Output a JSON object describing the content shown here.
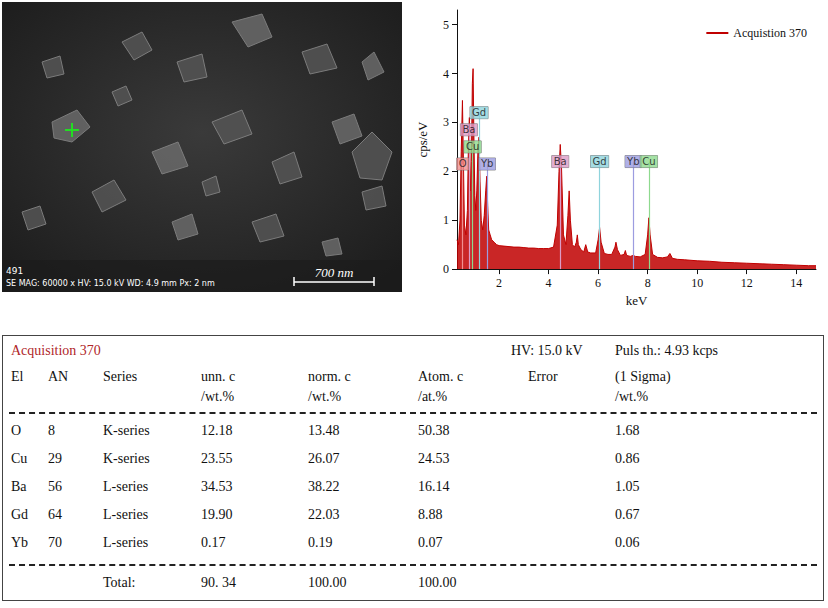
{
  "image": {
    "label": "491",
    "info": "SE MAG: 60000 x HV: 15.0 kV WD: 4.9 mm Px: 2 nm",
    "scale_bar": "700 nm"
  },
  "chart_data": {
    "type": "line",
    "xlabel": "keV",
    "ylabel": "cps/eV",
    "xlim": [
      0.3,
      14.8
    ],
    "xticks": [
      2,
      4,
      6,
      8,
      10,
      12,
      14
    ],
    "ylim": [
      0,
      5.3
    ],
    "yticks": [
      0,
      1,
      2,
      3,
      4,
      5
    ],
    "grid": false,
    "legend": "upper right",
    "x": [
      0.3,
      0.36,
      0.42,
      0.47,
      0.52,
      0.56,
      0.6,
      0.66,
      0.72,
      0.76,
      0.8,
      0.84,
      0.88,
      0.92,
      0.95,
      0.98,
      1.02,
      1.06,
      1.1,
      1.15,
      1.19,
      1.23,
      1.28,
      1.34,
      1.4,
      1.46,
      1.5,
      1.54,
      1.58,
      1.64,
      1.7,
      1.8,
      1.9,
      2.0,
      2.2,
      2.4,
      2.6,
      2.8,
      3.0,
      3.2,
      3.4,
      3.6,
      3.8,
      4.0,
      4.2,
      4.35,
      4.42,
      4.47,
      4.52,
      4.6,
      4.7,
      4.78,
      4.83,
      4.88,
      4.96,
      5.05,
      5.12,
      5.16,
      5.2,
      5.3,
      5.42,
      5.5,
      5.58,
      5.7,
      5.9,
      6.0,
      6.06,
      6.12,
      6.25,
      6.4,
      6.55,
      6.68,
      6.72,
      6.78,
      6.9,
      7.05,
      7.1,
      7.15,
      7.3,
      7.42,
      7.5,
      7.7,
      7.9,
      8.0,
      8.05,
      8.1,
      8.2,
      8.4,
      8.6,
      8.8,
      8.9,
      9.0,
      9.2,
      9.5,
      10.0,
      10.5,
      11.0,
      11.5,
      12.0,
      12.5,
      13.0,
      13.5,
      14.0,
      14.5,
      14.8
    ],
    "series": [
      {
        "name": "Acquistion 370",
        "color": "#c00000",
        "values": [
          0.6,
          0.5,
          1.0,
          2.4,
          3.45,
          2.2,
          0.9,
          0.7,
          1.2,
          2.5,
          3.1,
          1.6,
          2.2,
          3.8,
          4.1,
          2.8,
          1.5,
          1.2,
          1.6,
          2.5,
          2.7,
          1.8,
          1.0,
          0.8,
          1.1,
          1.6,
          1.9,
          1.3,
          0.8,
          0.7,
          0.6,
          0.55,
          0.5,
          0.48,
          0.47,
          0.46,
          0.45,
          0.45,
          0.44,
          0.43,
          0.43,
          0.42,
          0.42,
          0.42,
          0.45,
          0.9,
          2.0,
          2.55,
          2.1,
          0.7,
          0.5,
          1.1,
          1.6,
          1.0,
          0.5,
          0.45,
          0.55,
          0.7,
          0.5,
          0.4,
          0.35,
          0.5,
          0.35,
          0.33,
          0.33,
          0.6,
          0.85,
          0.55,
          0.32,
          0.3,
          0.3,
          0.45,
          0.55,
          0.4,
          0.28,
          0.3,
          0.38,
          0.28,
          0.26,
          0.28,
          0.26,
          0.25,
          0.3,
          0.7,
          1.05,
          0.7,
          0.3,
          0.24,
          0.23,
          0.25,
          0.32,
          0.22,
          0.2,
          0.19,
          0.17,
          0.16,
          0.14,
          0.13,
          0.12,
          0.11,
          0.1,
          0.09,
          0.08,
          0.07,
          0.07
        ]
      }
    ],
    "markers": [
      {
        "label": "O",
        "keV": 0.525,
        "height": 2.15,
        "color": "#f09090"
      },
      {
        "label": "Ba",
        "keV": 0.78,
        "height": 2.85,
        "color": "#dc9cc6"
      },
      {
        "label": "Cu",
        "keV": 0.93,
        "height": 2.5,
        "color": "#8ed98e"
      },
      {
        "label": "Gd",
        "keV": 1.19,
        "height": 3.2,
        "color": "#8fd3dc"
      },
      {
        "label": "Yb",
        "keV": 1.52,
        "height": 2.15,
        "color": "#9c9ce0"
      },
      {
        "label": "Ba",
        "keV": 4.47,
        "height": 2.2,
        "color": "#dc9cc6"
      },
      {
        "label": "Gd",
        "keV": 6.06,
        "height": 2.2,
        "color": "#8fd3dc"
      },
      {
        "label": "Yb",
        "keV": 7.42,
        "height": 2.2,
        "color": "#9c9ce0"
      },
      {
        "label": "Cu",
        "keV": 8.05,
        "height": 2.2,
        "color": "#8ed98e"
      }
    ]
  },
  "table": {
    "title": "Acquisition 370",
    "hv": "HV: 15.0 kV",
    "puls": "Puls th.: 4.93 kcps",
    "header": [
      "El",
      "AN",
      "Series",
      "unn. c",
      "norm. c",
      "Atom. c",
      "Error",
      "(1 Sigma)"
    ],
    "units": [
      null,
      null,
      null,
      "/wt.%",
      "/wt.%",
      "/at.%",
      null,
      "/wt.%"
    ],
    "rows": [
      [
        "O",
        "8",
        "K-series",
        "12.18",
        "13.48",
        "50.38",
        null,
        "1.68"
      ],
      [
        "Cu",
        "29",
        "K-series",
        "23.55",
        "26.07",
        "24.53",
        null,
        "0.86"
      ],
      [
        "Ba",
        "56",
        "L-series",
        "34.53",
        "38.22",
        "16.14",
        null,
        "1.05"
      ],
      [
        "Gd",
        "64",
        "L-series",
        "19.90",
        "22.03",
        "8.88",
        null,
        "0.67"
      ],
      [
        "Yb",
        "70",
        "L-series",
        "0.17",
        "0.19",
        "0.07",
        null,
        "0.06"
      ]
    ],
    "total": [
      null,
      null,
      "Total:",
      "90. 34",
      "100.00",
      "100.00",
      null,
      null
    ]
  }
}
